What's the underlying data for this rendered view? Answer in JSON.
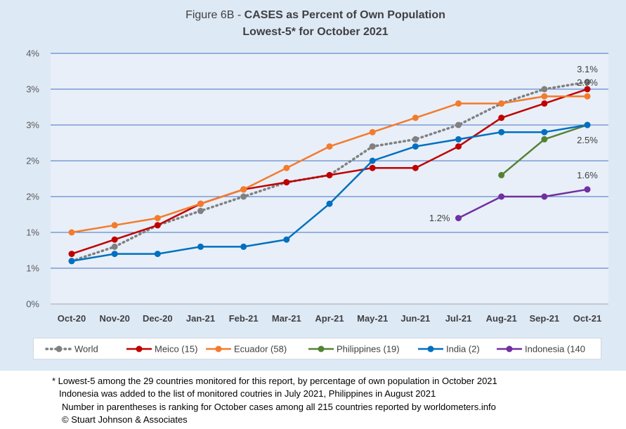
{
  "chart_data": {
    "type": "line",
    "title_prefix": "Figure 6B - ",
    "title_bold": "CASES as Percent of Own Population",
    "subtitle": "Lowest-5* for October 2021",
    "categories": [
      "Oct-20",
      "Nov-20",
      "Dec-20",
      "Jan-21",
      "Feb-21",
      "Mar-21",
      "Apr-21",
      "May-21",
      "Jun-21",
      "Jul-21",
      "Aug-21",
      "Sep-21",
      "Oct-21"
    ],
    "y_tick_labels": [
      "0%",
      "1%",
      "1%",
      "2%",
      "2%",
      "3%",
      "3%",
      "4%"
    ],
    "ylim": [
      0,
      3.5
    ],
    "grid": true,
    "legend_position": "bottom",
    "series": [
      {
        "name": "World",
        "color": "#808080",
        "dashed": true,
        "values": [
          0.6,
          0.8,
          1.1,
          1.3,
          1.5,
          1.7,
          1.8,
          2.2,
          2.3,
          2.5,
          2.8,
          3.0,
          3.1
        ]
      },
      {
        "name": "Meico (15)",
        "color": "#c00000",
        "values": [
          0.7,
          0.9,
          1.1,
          1.4,
          1.6,
          1.7,
          1.8,
          1.9,
          1.9,
          2.2,
          2.6,
          2.8,
          3.0
        ]
      },
      {
        "name": "Ecuador (58)",
        "color": "#f47b2c",
        "values": [
          1.0,
          1.1,
          1.2,
          1.4,
          1.6,
          1.9,
          2.2,
          2.4,
          2.6,
          2.8,
          2.8,
          2.9,
          2.9
        ]
      },
      {
        "name": "Philippines (19)",
        "color": "#548235",
        "values": [
          null,
          null,
          null,
          null,
          null,
          null,
          null,
          null,
          null,
          null,
          1.8,
          2.3,
          2.5
        ]
      },
      {
        "name": "India (2)",
        "color": "#0070c0",
        "values": [
          0.6,
          0.7,
          0.7,
          0.8,
          0.8,
          0.9,
          1.4,
          2.0,
          2.2,
          2.3,
          2.4,
          2.4,
          2.5
        ]
      },
      {
        "name": "Indonesia (140",
        "color": "#7030a0",
        "values": [
          null,
          null,
          null,
          null,
          null,
          null,
          null,
          null,
          null,
          1.2,
          1.5,
          1.5,
          1.6
        ]
      }
    ],
    "annotations": [
      {
        "text": "3.1%",
        "category": "Oct-21",
        "series": "World"
      },
      {
        "text": "2.9%",
        "category": "Oct-21",
        "series": "Ecuador (58)"
      },
      {
        "text": "2.5%",
        "category": "Oct-21",
        "series": "Philippines (19)"
      },
      {
        "text": "1.6%",
        "category": "Oct-21",
        "series": "Indonesia (140"
      },
      {
        "text": "1.2%",
        "category": "Jul-21",
        "series": "Indonesia (140"
      }
    ]
  },
  "footnote": {
    "lines": [
      "* Lowest-5 among the 29 countries monitored for this report, by percentage of own population in October 2021",
      "Indonesia was added to the list of monitored coutries in July 2021, Philippines in August 2021",
      "Number in parentheses is ranking for October cases among all 215 countries reported by worldometers.info",
      "© Stuart Johnson & Associates"
    ]
  }
}
